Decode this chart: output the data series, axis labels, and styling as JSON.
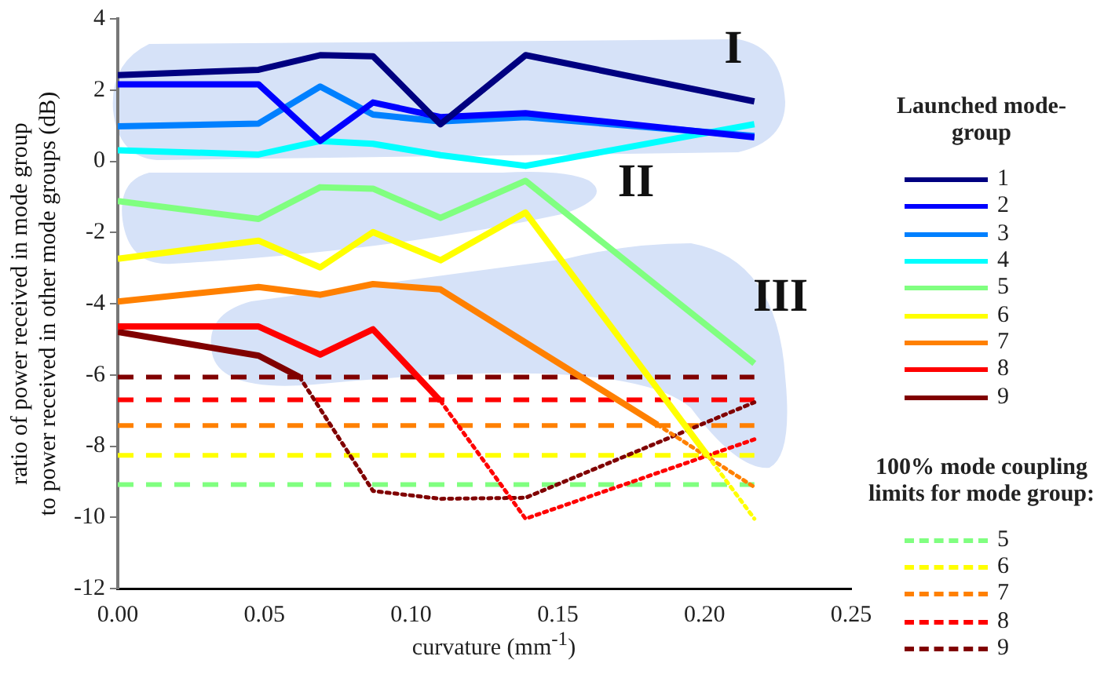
{
  "chart_data": {
    "type": "line",
    "xlabel": "curvature (mm$^{-1}$)",
    "ylabel": "ratio of power received in mode group\nto power received in other mode groups (dB)",
    "legend_title": "Launched mode-group",
    "legend": "right",
    "marker": "none",
    "grid": false,
    "xlim": [
      0,
      0.25
    ],
    "xticks": [
      {
        "value": 0,
        "label": "0.00"
      },
      {
        "value": 0.05,
        "label": "0.05"
      },
      {
        "value": 0.1,
        "label": "0.10"
      },
      {
        "value": 0.15,
        "label": "0.15"
      },
      {
        "value": 0.2,
        "label": "0.20"
      },
      {
        "value": 0.25,
        "label": "0.25"
      }
    ],
    "ylim": [
      -12,
      4
    ],
    "yticks": [
      -12,
      -10,
      -8,
      -6,
      -4,
      -2,
      0,
      2,
      4
    ],
    "annotations": [
      "100% mode coupling limits for mode group:",
      "I",
      "II",
      "III"
    ],
    "series": [
      {
        "name": "1",
        "color": "#000080",
        "line_style": "solid",
        "x": [
          0,
          0.048,
          0.069,
          0.087,
          0.11,
          0.139,
          0.217
        ],
        "values": [
          2.42,
          2.57,
          2.98,
          2.95,
          1.04,
          2.98,
          1.68
        ]
      },
      {
        "name": "2",
        "color": "#0000ff",
        "line_style": "solid",
        "x": [
          0,
          0.048,
          0.069,
          0.087,
          0.11,
          0.139,
          0.217
        ],
        "values": [
          2.16,
          2.16,
          0.57,
          1.65,
          1.24,
          1.35,
          0.67
        ]
      },
      {
        "name": "3",
        "color": "#0080ff",
        "line_style": "solid",
        "x": [
          0,
          0.048,
          0.069,
          0.087,
          0.11,
          0.139,
          0.217
        ],
        "values": [
          0.98,
          1.06,
          2.1,
          1.31,
          1.12,
          1.24,
          0.71
        ]
      },
      {
        "name": "4",
        "color": "#00ffff",
        "line_style": "solid",
        "x": [
          0,
          0.048,
          0.069,
          0.087,
          0.11,
          0.139,
          0.217
        ],
        "values": [
          0.31,
          0.19,
          0.57,
          0.49,
          0.17,
          -0.13,
          1.04
        ]
      },
      {
        "name": "5",
        "color": "#80ff80",
        "line_style": "solid",
        "x": [
          0,
          0.048,
          0.069,
          0.087,
          0.11,
          0.139,
          0.217
        ],
        "values": [
          -1.12,
          -1.62,
          -0.73,
          -0.77,
          -1.59,
          -0.55,
          -5.68
        ]
      },
      {
        "name": "6",
        "color": "#ffff00",
        "line_style": "solid",
        "x": [
          0,
          0.048,
          0.069,
          0.087,
          0.11,
          0.139,
          0.201
        ],
        "values": [
          -2.74,
          -2.23,
          -2.98,
          -1.99,
          -2.78,
          -1.44,
          -8.26
        ]
      },
      {
        "color": "#ffff00",
        "line_style": "dotted",
        "x": [
          0.201,
          0.217
        ],
        "values": [
          -8.26,
          -10.04
        ]
      },
      {
        "name": "7",
        "color": "#ff8000",
        "line_style": "solid",
        "x": [
          0,
          0.048,
          0.069,
          0.087,
          0.11,
          0.184
        ],
        "values": [
          -3.94,
          -3.53,
          -3.75,
          -3.45,
          -3.6,
          -7.4
        ]
      },
      {
        "color": "#ff8000",
        "line_style": "dotted",
        "x": [
          0.184,
          0.217
        ],
        "values": [
          -7.4,
          -9.15
        ]
      },
      {
        "name": "8",
        "color": "#ff0000",
        "line_style": "solid",
        "x": [
          0,
          0.048,
          0.069,
          0.087,
          0.11
        ],
        "values": [
          -4.64,
          -4.64,
          -5.43,
          -4.72,
          -6.73
        ]
      },
      {
        "color": "#ff0000",
        "line_style": "dotted",
        "x": [
          0.11,
          0.139,
          0.217
        ],
        "values": [
          -6.73,
          -10.04,
          -7.81
        ]
      },
      {
        "name": "9",
        "color": "#800000",
        "line_style": "solid",
        "x": [
          0,
          0.048,
          0.062
        ],
        "values": [
          -4.79,
          -5.46,
          -6.06
        ]
      },
      {
        "color": "#800000",
        "line_style": "dotted",
        "x": [
          0.062,
          0.087,
          0.11,
          0.139,
          0.217
        ],
        "values": [
          -6.06,
          -9.26,
          -9.48,
          -9.45,
          -6.77
        ]
      },
      {
        "name": "5",
        "color": "#80ff80",
        "line_style": "dashed",
        "x": [
          0,
          0.217
        ],
        "values": [
          -9.08,
          -9.08
        ]
      },
      {
        "name": "6",
        "color": "#ffff00",
        "line_style": "dashed",
        "x": [
          0,
          0.217
        ],
        "values": [
          -8.26,
          -8.26
        ]
      },
      {
        "name": "7",
        "color": "#ff8000",
        "line_style": "dashed",
        "x": [
          0,
          0.217
        ],
        "values": [
          -7.42,
          -7.42
        ]
      },
      {
        "name": "8",
        "color": "#ff0000",
        "line_style": "dashed",
        "x": [
          0,
          0.217
        ],
        "values": [
          -6.7,
          -6.7
        ]
      },
      {
        "name": "9",
        "color": "#800000",
        "line_style": "dashed",
        "x": [
          0,
          0.217
        ],
        "values": [
          -6.06,
          -6.06
        ]
      }
    ]
  }
}
